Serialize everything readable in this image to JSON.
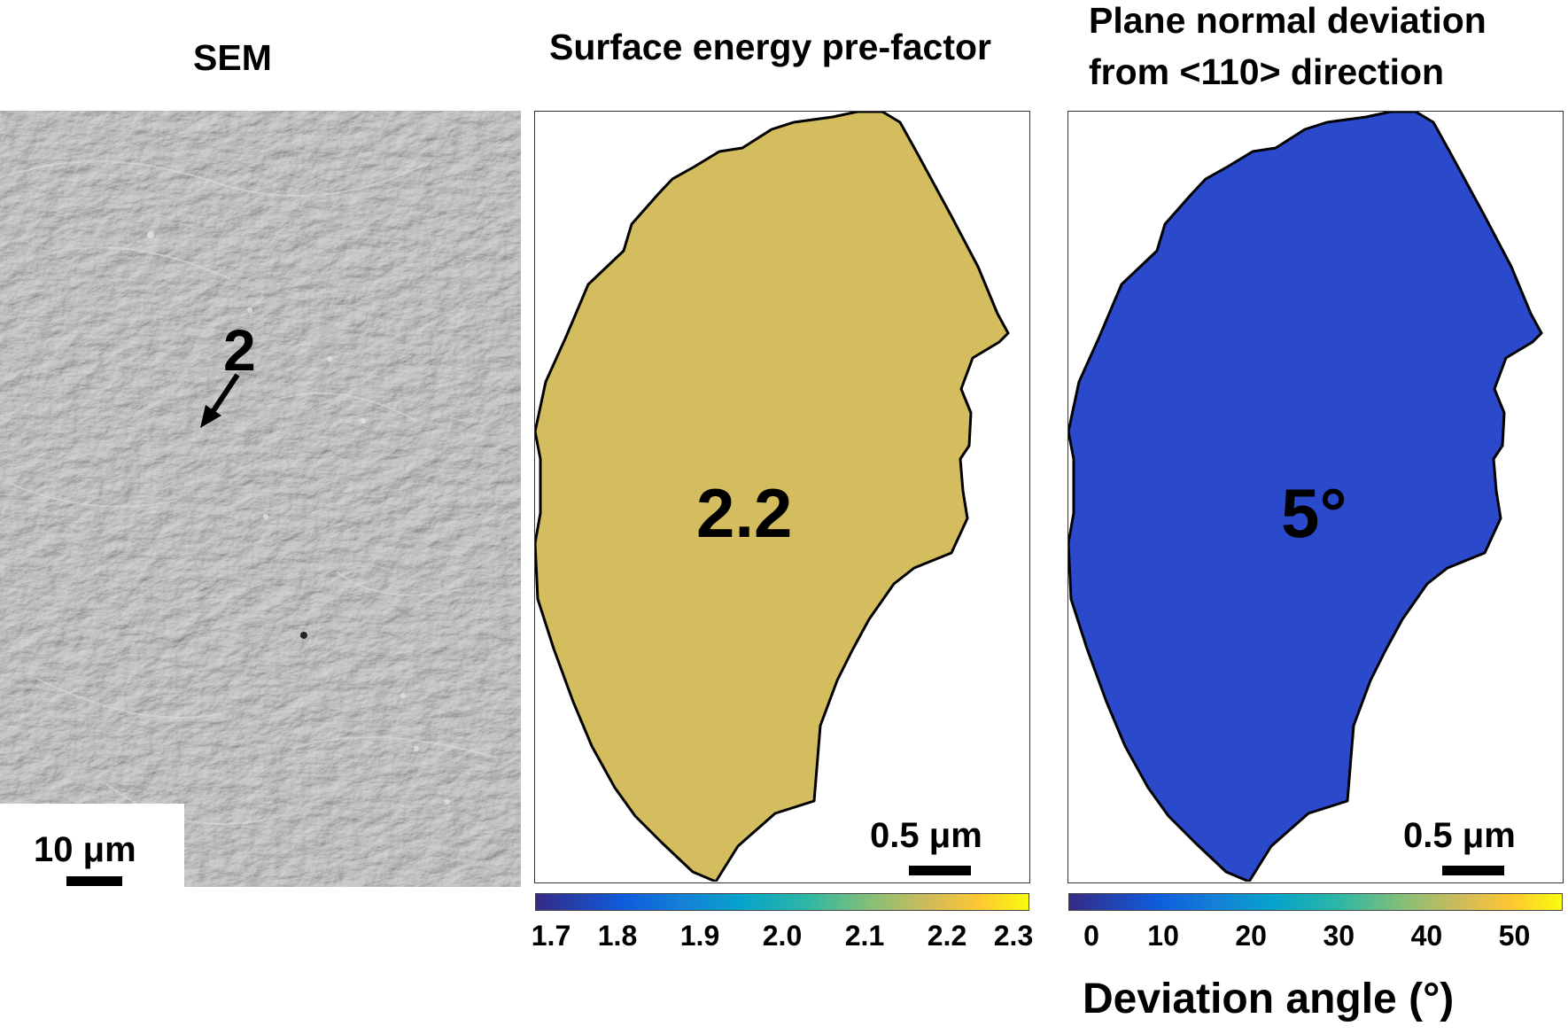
{
  "panels": {
    "sem": {
      "title": "SEM",
      "marker_label": "2",
      "scale_bar_label": "10 μm"
    },
    "surface": {
      "title": "Surface energy pre-factor",
      "value_label": "2.2",
      "fill_color": "#D4BD5E",
      "scale_bar_label": "0.5 μm",
      "colorbar": {
        "ticks": [
          "1.7",
          "1.8",
          "1.9",
          "2.0",
          "2.1",
          "2.2",
          "2.3"
        ],
        "range": [
          1.7,
          2.3
        ]
      }
    },
    "deviation": {
      "title_line1": "Plane normal deviation",
      "title_line2": "from <110> direction",
      "value_label": "5°",
      "fill_color": "#2B4ACB",
      "scale_bar_label": "0.5 μm",
      "colorbar": {
        "ticks": [
          "0",
          "10",
          "20",
          "30",
          "40",
          "50"
        ],
        "range": [
          0,
          55
        ],
        "title": "Deviation angle (°)"
      }
    }
  },
  "colors": {
    "parula_start": "#352A87",
    "parula_mid": "#1AB2AD",
    "parula_end": "#F9FB0E"
  }
}
